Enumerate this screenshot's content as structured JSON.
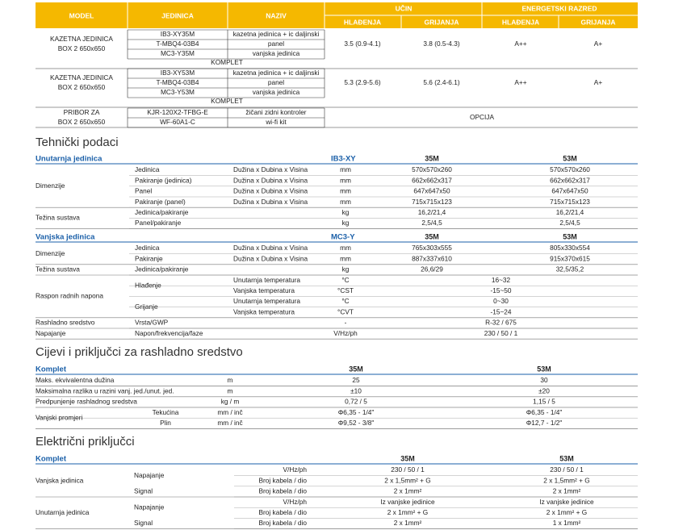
{
  "top_table": {
    "headers": {
      "model": "MODEL",
      "unit": "JEDINICA",
      "name": "NAZIV",
      "output": "UČIN",
      "output_cool": "HLAĐENJA",
      "output_heat": "GRIJANJA",
      "energy": "ENERGETSKI RAZRED",
      "energy_cool": "HLAĐENJA",
      "energy_heat": "GRIJANJA"
    },
    "groups": [
      {
        "model": [
          "KAZETNA JEDINICA",
          "BOX 2 650x650"
        ],
        "units": [
          "IB3-XY35M",
          "T-MBQ4-03B4",
          "MC3-Y35M"
        ],
        "names": [
          "kazetna jedinica + ic daljinski",
          "panel",
          "vanjska jedinica"
        ],
        "cooling": "3.5 (0.9-4.1)",
        "heating": "3.8 (0.5-4.3)",
        "class_cool": "A++",
        "class_heat": "A+",
        "note": "KOMPLET"
      },
      {
        "model": [
          "KAZETNA JEDINICA",
          "BOX 2 650x650"
        ],
        "units": [
          "IB3-XY53M",
          "T-MBQ4-03B4",
          "MC3-Y53M"
        ],
        "names": [
          "kazetna jedinica + ic daljinski",
          "panel",
          "vanjska jedinica"
        ],
        "cooling": "5.3 (2.9-5.6)",
        "heating": "5.6 (2.4-6.1)",
        "class_cool": "A++",
        "class_heat": "A+",
        "note": "KOMPLET"
      },
      {
        "model": [
          "PRIBOR ZA",
          "BOX 2 650x650"
        ],
        "units": [
          "KJR-120X2-TFBG-E",
          "WF-60A1-C"
        ],
        "names": [
          "žičani zidni kontroler",
          "wi-fi kit"
        ],
        "option": "OPCIJA"
      }
    ]
  },
  "tech": {
    "title": "Tehnički podaci",
    "indoor": {
      "header": {
        "label": "Unutarnja jedinica",
        "code": "IB3-XY",
        "cols": [
          "35M",
          "53M"
        ]
      },
      "rows": [
        {
          "group": "Dimenzije",
          "items": [
            {
              "item": "Jedinica",
              "desc": "Dužina x Dubina x Visina",
              "unit": "mm",
              "values": [
                "570x570x260",
                "570x570x260"
              ]
            },
            {
              "item": "Pakiranje (jedinica)",
              "desc": "Dužina x Dubina x Visina",
              "unit": "mm",
              "values": [
                "662x662x317",
                "662x662x317"
              ]
            },
            {
              "item": "Panel",
              "desc": "Dužina x Dubina x Visina",
              "unit": "mm",
              "values": [
                "647x647x50",
                "647x647x50"
              ]
            },
            {
              "item": "Pakiranje (panel)",
              "desc": "Dužina x Dubina x Visina",
              "unit": "mm",
              "values": [
                "715x715x123",
                "715x715x123"
              ]
            }
          ]
        },
        {
          "group": "Težina sustava",
          "items": [
            {
              "item": "Jedinica/pakiranje",
              "unit": "kg",
              "values": [
                "16,2/21,4",
                "16,2/21,4"
              ]
            },
            {
              "item": "Panel/pakiranje",
              "unit": "kg",
              "values": [
                "2,5/4,5",
                "2,5/4,5"
              ]
            }
          ]
        }
      ]
    },
    "outdoor": {
      "header": {
        "label": "Vanjska jedinica",
        "code": "MC3-Y",
        "cols": [
          "35M",
          "53M"
        ]
      },
      "rows": [
        {
          "group": "Dimenzije",
          "items": [
            {
              "item": "Jedinica",
              "desc": "Dužina x Dubina x Visina",
              "unit": "mm",
              "values": [
                "765x303x555",
                "805x330x554"
              ]
            },
            {
              "item": "Pakiranje",
              "desc": "Dužina x Dubina x Visina",
              "unit": "mm",
              "values": [
                "887x337x610",
                "915x370x615"
              ]
            }
          ]
        },
        {
          "group": "Težina sustava",
          "items": [
            {
              "item": "Jedinica/pakiranje",
              "unit": "kg",
              "values": [
                "26,6/29",
                "32,5/35,2"
              ]
            }
          ]
        },
        {
          "group": "Raspon radnih napona",
          "items": [
            {
              "item": "Hlađenje",
              "lines": [
                {
                  "desc": "Unutarnja temperatura",
                  "unit": "°C",
                  "value": "16~32"
                },
                {
                  "desc": "Vanjska temperatura",
                  "unit": "°CST",
                  "value": "-15~50"
                }
              ]
            },
            {
              "item": "Grijanje",
              "lines": [
                {
                  "desc": "Unutarnja temperatura",
                  "unit": "°C",
                  "value": "0~30"
                },
                {
                  "desc": "Vanjska temperatura",
                  "unit": "°CVT",
                  "value": "-15~24"
                }
              ]
            }
          ]
        },
        {
          "group": "Rashladno sredstvo",
          "items": [
            {
              "item": "Vrsta/GWP",
              "unit": "-",
              "value": "R-32 / 675"
            }
          ]
        },
        {
          "group": "Napajanje",
          "items": [
            {
              "item": "Napon/frekvencija/faze",
              "unit": "V/Hz/ph",
              "value": "230 / 50 / 1"
            }
          ]
        }
      ]
    }
  },
  "pipes": {
    "title": "Cijevi i priključci za rashladno sredstvo",
    "header": {
      "label": "Komplet",
      "cols": [
        "35M",
        "53M"
      ]
    },
    "rows": [
      {
        "group": "Maks. ekvivalentna dužina",
        "unit": "m",
        "values": [
          "25",
          "30"
        ]
      },
      {
        "group": "Maksimalna razlika u razini vanj. jed./unut. jed.",
        "unit": "m",
        "values": [
          "±10",
          "±20"
        ]
      },
      {
        "group": "Predpunjenje rashladnog sredstva",
        "unit": "kg / m",
        "values": [
          "0,72 / 5",
          "1,15 / 5"
        ]
      },
      {
        "group": "Vanjski promjeri",
        "items": [
          {
            "item": "Tekućina",
            "unit": "mm / inč",
            "values": [
              "Φ6,35 - 1/4\"",
              "Φ6,35 - 1/4\""
            ]
          },
          {
            "item": "Plin",
            "unit": "mm / inč",
            "values": [
              "Φ9,52 - 3/8\"",
              "Φ12,7 - 1/2\""
            ]
          }
        ]
      }
    ]
  },
  "electric": {
    "title": "Električni priključci",
    "header": {
      "label": "Komplet",
      "cols": [
        "35M",
        "53M"
      ]
    },
    "rows": [
      {
        "group": "Vanjska jedinica",
        "items": [
          {
            "item": "Napajanje",
            "lines": [
              {
                "desc": "V/Hz/ph",
                "values": [
                  "230 / 50 / 1",
                  "230 / 50 / 1"
                ]
              },
              {
                "desc": "Broj kabela / dio",
                "values": [
                  "2 x 1,5mm² + G",
                  "2 x 1,5mm² + G"
                ]
              }
            ]
          },
          {
            "item": "Signal",
            "lines": [
              {
                "desc": "Broj kabela / dio",
                "values": [
                  "2 x 1mm²",
                  "2 x 1mm²"
                ]
              }
            ]
          }
        ]
      },
      {
        "group": "Unutarnja jedinica",
        "items": [
          {
            "item": "Napajanje",
            "lines": [
              {
                "desc": "V/Hz/ph",
                "values": [
                  "Iz vanjske jedinice",
                  "Iz vanjske jedinice"
                ]
              },
              {
                "desc": "Broj kabela / dio",
                "values": [
                  "2 x 1mm² + G",
                  "2 x 1mm² + G"
                ]
              }
            ]
          },
          {
            "item": "Signal",
            "lines": [
              {
                "desc": "Broj kabela / dio",
                "values": [
                  "2 x 1mm²",
                  "1 x 1mm²"
                ]
              }
            ]
          }
        ]
      }
    ]
  }
}
